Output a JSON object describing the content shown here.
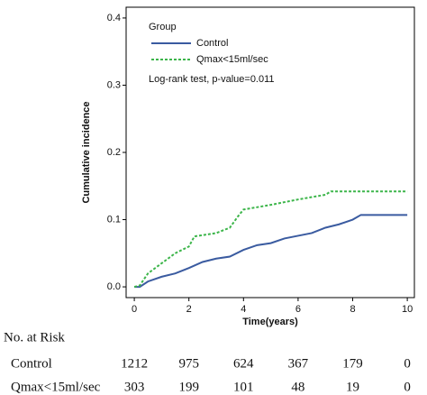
{
  "chart_data": {
    "type": "line",
    "x_label": "Time(years)",
    "y_label": "Cumulative incidence",
    "legend_title": "Group",
    "annotation": "Log-rank test, p-value=0.011",
    "xlim": [
      -0.3,
      10.26
    ],
    "ylim": [
      -0.016,
      0.416
    ],
    "xticks": [
      0,
      2,
      4,
      6,
      8,
      10
    ],
    "yticks": [
      {
        "value": 0,
        "label": "0.0"
      },
      {
        "value": 0.1,
        "label": "0.1"
      },
      {
        "value": 0.2,
        "label": "0.2"
      },
      {
        "value": 0.3,
        "label": "0.3"
      },
      {
        "value": 0.4,
        "label": "0.4"
      }
    ],
    "series": [
      {
        "name": "Control",
        "color": "#3a5ba0",
        "dash": "none",
        "x": [
          0,
          0.2,
          0.5,
          1,
          1.5,
          2,
          2.5,
          3,
          3.5,
          4,
          4.5,
          5,
          5.5,
          6,
          6.5,
          7,
          7.5,
          8,
          8.3,
          10
        ],
        "values": [
          0,
          0,
          0.008,
          0.015,
          0.02,
          0.028,
          0.037,
          0.042,
          0.045,
          0.055,
          0.062,
          0.065,
          0.072,
          0.076,
          0.08,
          0.088,
          0.093,
          0.1,
          0.107,
          0.107
        ]
      },
      {
        "name": "Qmax<15ml/sec",
        "color": "#3cb54a",
        "dash": "3,2",
        "x": [
          0,
          0.2,
          0.5,
          1,
          1.5,
          2,
          2.2,
          3,
          3.5,
          3.8,
          4,
          5,
          6,
          7,
          7.2,
          10
        ],
        "values": [
          0,
          0.002,
          0.02,
          0.035,
          0.05,
          0.06,
          0.075,
          0.08,
          0.088,
          0.105,
          0.115,
          0.122,
          0.13,
          0.137,
          0.142,
          0.142
        ]
      }
    ],
    "risk_table": {
      "title": "No. at Risk",
      "rows": [
        {
          "name": "Control",
          "values": [
            1212,
            975,
            624,
            367,
            179,
            0
          ]
        },
        {
          "name": "Qmax<15ml/sec",
          "values": [
            303,
            199,
            101,
            48,
            19,
            0
          ]
        }
      ]
    }
  }
}
